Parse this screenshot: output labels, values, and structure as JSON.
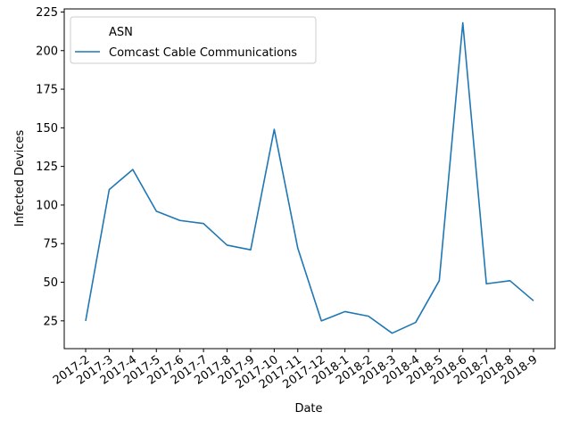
{
  "chart_data": {
    "type": "line",
    "title": "",
    "xlabel": "Date",
    "ylabel": "Infected Devices",
    "ylim": [
      7,
      227
    ],
    "yticks": [
      25,
      50,
      75,
      100,
      125,
      150,
      175,
      200,
      225
    ],
    "grid": false,
    "legend_placement": "top-left",
    "legend_title": "ASN",
    "categories": [
      "2017-2",
      "2017-3",
      "2017-4",
      "2017-5",
      "2017-6",
      "2017-7",
      "2017-8",
      "2017-9",
      "2017-10",
      "2017-11",
      "2017-12",
      "2018-1",
      "2018-2",
      "2018-3",
      "2018-4",
      "2018-5",
      "2018-6",
      "2018-7",
      "2018-8",
      "2018-9"
    ],
    "series": [
      {
        "name": "Comcast Cable Communications",
        "color": "#1f77b4",
        "values": [
          25,
          110,
          123,
          96,
          90,
          88,
          74,
          71,
          149,
          72,
          25,
          31,
          28,
          17,
          24,
          51,
          218,
          49,
          51,
          38
        ]
      }
    ]
  }
}
